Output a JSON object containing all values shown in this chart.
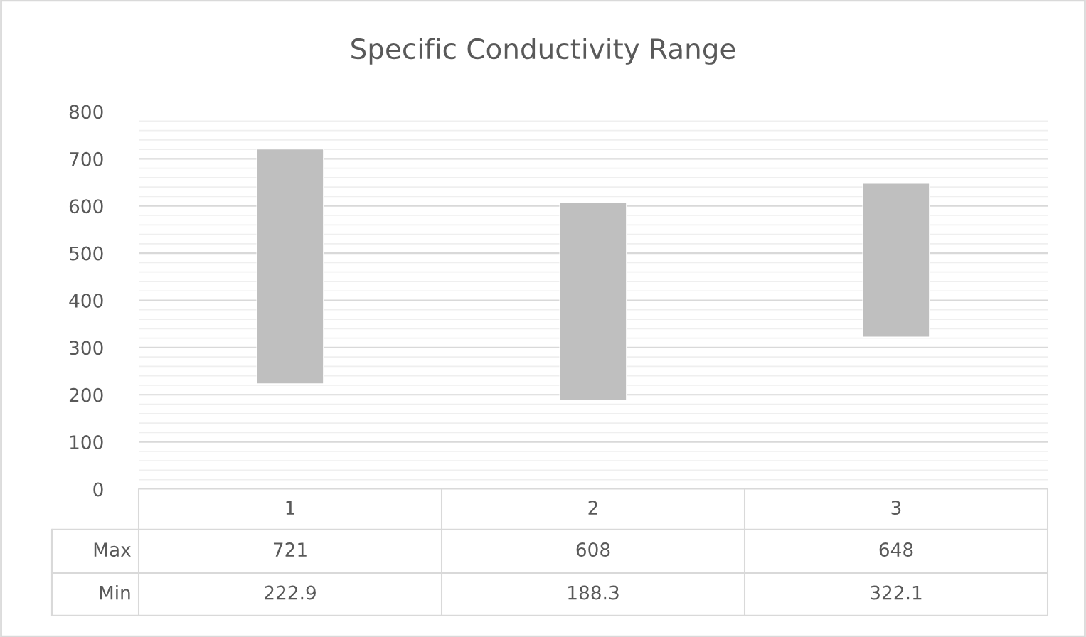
{
  "chart_data": {
    "type": "bar",
    "title": "Specific Conductivity Range",
    "categories": [
      "1",
      "2",
      "3"
    ],
    "base": [
      222.9,
      188.3,
      322.1
    ],
    "values": [
      498.1,
      419.7,
      325.9
    ],
    "color": "#bfbfbf",
    "ylim": [
      0,
      800
    ],
    "yticks": [
      0,
      100,
      200,
      300,
      400,
      500,
      600,
      700,
      800
    ],
    "grid": "y",
    "annotations": [
      "Max",
      "721",
      "608",
      "648",
      "Min",
      "222.9",
      "188.3",
      "322.1"
    ]
  }
}
